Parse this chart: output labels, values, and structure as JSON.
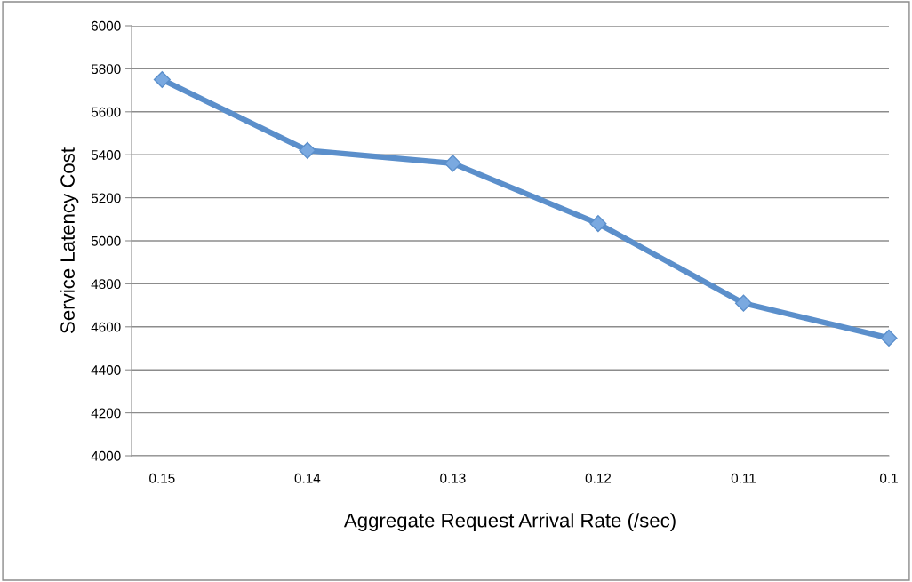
{
  "chart_data": {
    "type": "line",
    "xlabel": "Aggregate Request Arrival Rate (/sec)",
    "ylabel": "Service Latency Cost",
    "categories": [
      "0.15",
      "0.14",
      "0.13",
      "0.12",
      "0.11",
      "0.1"
    ],
    "series": [
      {
        "color": "#5b8fcb",
        "values": [
          5750,
          5420,
          5360,
          5080,
          4710,
          4548
        ]
      }
    ],
    "ylim": [
      4000,
      6000
    ],
    "yticks": [
      4000,
      4200,
      4400,
      4600,
      4800,
      5000,
      5200,
      5400,
      5600,
      5800,
      6000
    ],
    "grid": "y",
    "marker": "diamond",
    "line_style": "solid"
  }
}
